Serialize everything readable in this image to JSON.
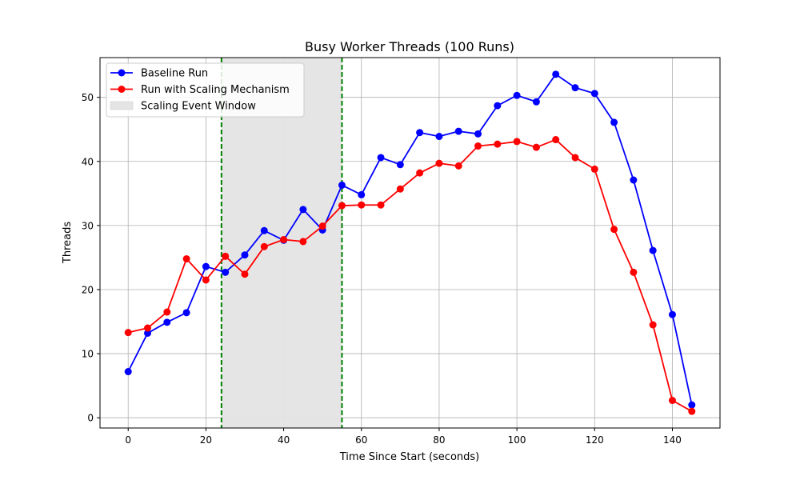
{
  "chart_data": {
    "type": "line",
    "title": "Busy Worker Threads (100 Runs)",
    "xlabel": "Time Since Start (seconds)",
    "ylabel": "Threads",
    "xlim": [
      -7.25,
      152.25
    ],
    "ylim": [
      -1.6,
      56.2
    ],
    "xticks": [
      0,
      20,
      40,
      60,
      80,
      100,
      120,
      140
    ],
    "yticks": [
      0,
      10,
      20,
      30,
      40,
      50
    ],
    "grid": true,
    "legend_position": "top-left",
    "x": [
      0,
      5,
      10,
      15,
      20,
      25,
      30,
      35,
      40,
      45,
      50,
      55,
      60,
      65,
      70,
      75,
      80,
      85,
      90,
      95,
      100,
      105,
      110,
      115,
      120,
      125,
      130,
      135,
      140,
      145
    ],
    "series": [
      {
        "name": "Baseline Run",
        "color": "#0000ff",
        "values": [
          7.2,
          13.2,
          14.9,
          16.4,
          23.6,
          22.7,
          25.4,
          29.2,
          27.7,
          32.5,
          29.3,
          36.3,
          34.8,
          40.6,
          39.5,
          44.5,
          43.9,
          44.7,
          44.3,
          48.7,
          50.3,
          49.3,
          53.6,
          51.5,
          50.6,
          46.1,
          37.1,
          26.1,
          16.1,
          2.0
        ]
      },
      {
        "name": "Run with Scaling Mechanism",
        "color": "#ff0000",
        "values": [
          13.3,
          14.0,
          16.5,
          24.8,
          21.5,
          25.2,
          22.4,
          26.7,
          27.8,
          27.5,
          29.9,
          33.1,
          33.2,
          33.2,
          35.7,
          38.2,
          39.7,
          39.3,
          42.4,
          42.7,
          43.1,
          42.2,
          43.4,
          40.6,
          38.8,
          29.4,
          22.7,
          14.5,
          2.7,
          1.0
        ]
      }
    ],
    "shaded_region": {
      "name": "Scaling Event Window",
      "x_start": 24,
      "x_end": 55,
      "fill_color": "#e4e4e4",
      "edge_color": "#008000"
    }
  }
}
